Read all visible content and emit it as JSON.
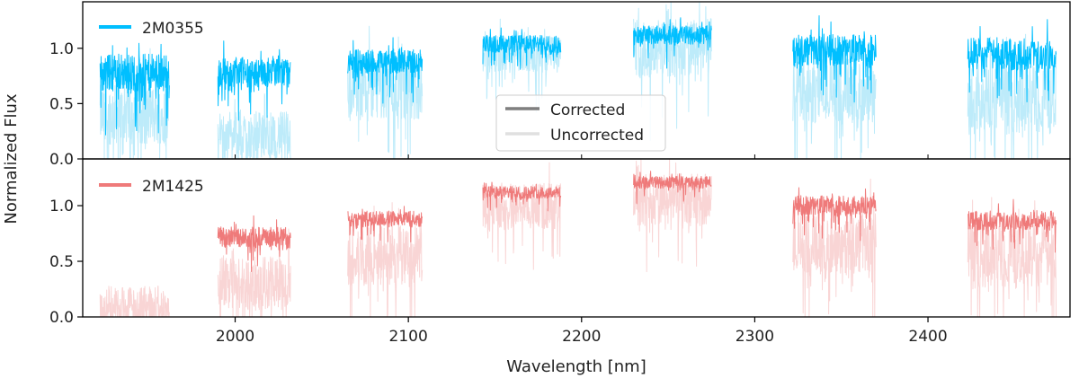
{
  "chart_data": {
    "type": "line",
    "xlabel": "Wavelength [nm]",
    "ylabel": "Normalized Flux",
    "xlim": [
      1912,
      2482
    ],
    "x_ticks": [
      2000,
      2100,
      2200,
      2300,
      2400
    ],
    "x_tick_labels": [
      "2000",
      "2100",
      "2200",
      "2300",
      "2400"
    ],
    "y_ticks": [
      0.0,
      0.5,
      1.0
    ],
    "y_tick_labels": [
      "0.0",
      "0.5",
      "1.0"
    ],
    "style_legend": {
      "location": "center",
      "entries": [
        {
          "label": "Corrected",
          "color": "#7f7f7f"
        },
        {
          "label": "Uncorrected",
          "color": "#e0e0e0"
        }
      ]
    },
    "panels": [
      {
        "name": "2M0355",
        "legend_location": "upper-left",
        "color": "#00BFFF",
        "light_color": "#BDEBFA",
        "ylim": [
          0,
          1.42
        ],
        "orders": [
          {
            "range": [
              1922,
              1962
            ],
            "corrected": {
              "mean": 0.78,
              "amp": 0.28
            },
            "uncorrected": {
              "mean": 0.4,
              "amp": 0.45
            }
          },
          {
            "range": [
              1990,
              2032
            ],
            "corrected": {
              "mean": 0.78,
              "amp": 0.22
            },
            "uncorrected": {
              "mean": 0.22,
              "amp": 0.35
            }
          },
          {
            "range": [
              2065,
              2108
            ],
            "corrected": {
              "mean": 0.88,
              "amp": 0.18
            },
            "uncorrected": {
              "mean": 0.65,
              "amp": 0.5
            }
          },
          {
            "range": [
              2143,
              2188
            ],
            "corrected": {
              "mean": 1.04,
              "amp": 0.13
            },
            "uncorrected": {
              "mean": 0.95,
              "amp": 0.28
            }
          },
          {
            "range": [
              2230,
              2275
            ],
            "corrected": {
              "mean": 1.12,
              "amp": 0.14
            },
            "uncorrected": {
              "mean": 1.0,
              "amp": 0.45
            }
          },
          {
            "range": [
              2322,
              2370
            ],
            "corrected": {
              "mean": 0.98,
              "amp": 0.24
            },
            "uncorrected": {
              "mean": 0.62,
              "amp": 0.5
            }
          },
          {
            "range": [
              2423,
              2474
            ],
            "corrected": {
              "mean": 0.95,
              "amp": 0.25
            },
            "uncorrected": {
              "mean": 0.55,
              "amp": 0.55
            }
          }
        ]
      },
      {
        "name": "2M1425",
        "legend_location": "upper-left",
        "color": "#EF7A7A",
        "light_color": "#F9D5D5",
        "ylim": [
          0,
          1.42
        ],
        "orders": [
          {
            "range": [
              1922,
              1962
            ],
            "corrected": null,
            "uncorrected": {
              "mean": 0.1,
              "amp": 0.3
            }
          },
          {
            "range": [
              1990,
              2032
            ],
            "corrected": {
              "mean": 0.72,
              "amp": 0.15
            },
            "uncorrected": {
              "mean": 0.3,
              "amp": 0.4
            }
          },
          {
            "range": [
              2065,
              2108
            ],
            "corrected": {
              "mean": 0.88,
              "amp": 0.12
            },
            "uncorrected": {
              "mean": 0.55,
              "amp": 0.45
            }
          },
          {
            "range": [
              2143,
              2188
            ],
            "corrected": {
              "mean": 1.12,
              "amp": 0.09
            },
            "uncorrected": {
              "mean": 1.0,
              "amp": 0.35
            }
          },
          {
            "range": [
              2230,
              2275
            ],
            "corrected": {
              "mean": 1.21,
              "amp": 0.09
            },
            "uncorrected": {
              "mean": 1.05,
              "amp": 0.4
            }
          },
          {
            "range": [
              2322,
              2370
            ],
            "corrected": {
              "mean": 1.0,
              "amp": 0.15
            },
            "uncorrected": {
              "mean": 0.65,
              "amp": 0.45
            }
          },
          {
            "range": [
              2423,
              2474
            ],
            "corrected": {
              "mean": 0.87,
              "amp": 0.15
            },
            "uncorrected": {
              "mean": 0.55,
              "amp": 0.5
            }
          }
        ]
      }
    ]
  }
}
